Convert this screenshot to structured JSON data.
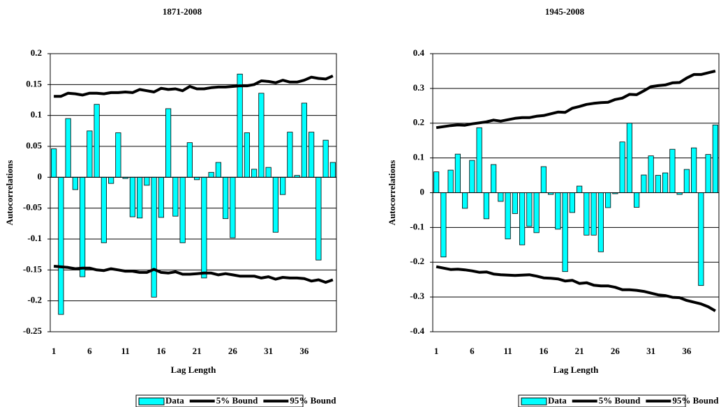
{
  "chart_data": [
    {
      "type": "bar",
      "title": "1871-2008",
      "x_label": "Lag Length",
      "y_label": "Autocorrelations",
      "categories": [
        "1",
        null,
        null,
        null,
        null,
        "6",
        null,
        null,
        null,
        null,
        "11",
        null,
        null,
        null,
        null,
        "16",
        null,
        null,
        null,
        null,
        "21",
        null,
        null,
        null,
        null,
        "26",
        null,
        null,
        null,
        null,
        "31",
        null,
        null,
        null,
        null,
        "36",
        null,
        null,
        null,
        null
      ],
      "series": [
        {
          "name": "Data",
          "type": "bar",
          "color": "#00ffff",
          "values": [
            0.046,
            -0.222,
            0.095,
            -0.02,
            -0.161,
            0.075,
            0.118,
            -0.106,
            -0.01,
            0.072,
            -0.002,
            -0.064,
            -0.066,
            -0.013,
            -0.194,
            -0.065,
            0.111,
            -0.063,
            -0.106,
            0.056,
            -0.004,
            -0.163,
            0.008,
            0.024,
            -0.067,
            -0.098,
            0.167,
            0.072,
            0.013,
            0.136,
            0.016,
            -0.089,
            -0.028,
            0.073,
            0.003,
            0.12,
            0.073,
            -0.134,
            0.06,
            0.024
          ]
        },
        {
          "name": "5% Bound",
          "type": "line",
          "color": "#000000",
          "values": [
            -0.144,
            -0.145,
            -0.146,
            -0.148,
            -0.147,
            -0.147,
            -0.15,
            -0.151,
            -0.148,
            -0.15,
            -0.152,
            -0.152,
            -0.154,
            -0.154,
            -0.149,
            -0.154,
            -0.155,
            -0.153,
            -0.157,
            -0.157,
            -0.156,
            -0.155,
            -0.155,
            -0.158,
            -0.156,
            -0.158,
            -0.16,
            -0.16,
            -0.16,
            -0.163,
            -0.161,
            -0.165,
            -0.162,
            -0.163,
            -0.163,
            -0.164,
            -0.168,
            -0.166,
            -0.17,
            -0.166
          ]
        },
        {
          "name": "95% Bound",
          "type": "line",
          "color": "#000000",
          "values": [
            0.131,
            0.131,
            0.136,
            0.135,
            0.133,
            0.136,
            0.136,
            0.135,
            0.137,
            0.137,
            0.138,
            0.137,
            0.142,
            0.14,
            0.138,
            0.144,
            0.142,
            0.143,
            0.14,
            0.147,
            0.143,
            0.143,
            0.145,
            0.146,
            0.146,
            0.147,
            0.148,
            0.148,
            0.15,
            0.156,
            0.155,
            0.153,
            0.157,
            0.154,
            0.154,
            0.157,
            0.162,
            0.16,
            0.159,
            0.164
          ]
        }
      ],
      "ylim": [
        -0.25,
        0.2
      ],
      "yticks": [
        0.2,
        0.15,
        0.1,
        0.05,
        0,
        -0.05,
        -0.1,
        -0.15,
        -0.2,
        -0.25
      ],
      "grid": true,
      "legend": "bottom"
    },
    {
      "type": "bar",
      "title": "1945-2008",
      "x_label": "Lag Length",
      "y_label": "Autocorrelations",
      "categories": [
        "1",
        null,
        null,
        null,
        null,
        "6",
        null,
        null,
        null,
        null,
        "11",
        null,
        null,
        null,
        null,
        "16",
        null,
        null,
        null,
        null,
        "21",
        null,
        null,
        null,
        null,
        "26",
        null,
        null,
        null,
        null,
        "31",
        null,
        null,
        null,
        null,
        "36",
        null,
        null,
        null,
        null
      ],
      "series": [
        {
          "name": "Data",
          "type": "bar",
          "color": "#00ffff",
          "values": [
            0.06,
            -0.185,
            0.065,
            0.111,
            -0.045,
            0.093,
            0.187,
            -0.075,
            0.081,
            -0.025,
            -0.133,
            -0.06,
            -0.15,
            -0.097,
            -0.115,
            0.075,
            -0.005,
            -0.105,
            -0.227,
            -0.057,
            0.019,
            -0.122,
            -0.122,
            -0.17,
            -0.043,
            -0.003,
            0.146,
            0.2,
            -0.042,
            0.051,
            0.106,
            0.05,
            0.057,
            0.125,
            -0.005,
            0.067,
            0.129,
            -0.267,
            0.11,
            0.195
          ]
        },
        {
          "name": "5% Bound",
          "type": "line",
          "color": "#000000",
          "values": [
            -0.213,
            -0.217,
            -0.221,
            -0.22,
            -0.222,
            -0.225,
            -0.229,
            -0.228,
            -0.234,
            -0.236,
            -0.237,
            -0.238,
            -0.237,
            -0.236,
            -0.24,
            -0.245,
            -0.246,
            -0.248,
            -0.254,
            -0.252,
            -0.261,
            -0.259,
            -0.266,
            -0.268,
            -0.268,
            -0.272,
            -0.279,
            -0.279,
            -0.281,
            -0.284,
            -0.289,
            -0.294,
            -0.296,
            -0.301,
            -0.302,
            -0.31,
            -0.315,
            -0.32,
            -0.328,
            -0.34
          ]
        },
        {
          "name": "95% Bound",
          "type": "line",
          "color": "#000000",
          "values": [
            0.187,
            0.19,
            0.193,
            0.195,
            0.194,
            0.198,
            0.201,
            0.204,
            0.209,
            0.206,
            0.21,
            0.214,
            0.216,
            0.216,
            0.22,
            0.222,
            0.227,
            0.232,
            0.231,
            0.243,
            0.248,
            0.254,
            0.257,
            0.259,
            0.26,
            0.268,
            0.272,
            0.283,
            0.282,
            0.293,
            0.305,
            0.308,
            0.31,
            0.316,
            0.317,
            0.33,
            0.34,
            0.34,
            0.345,
            0.35
          ]
        }
      ],
      "ylim": [
        -0.4,
        0.4
      ],
      "yticks": [
        0.4,
        0.3,
        0.2,
        0.1,
        0,
        -0.1,
        -0.2,
        -0.3,
        -0.4
      ],
      "grid": true,
      "legend": "bottom"
    }
  ]
}
